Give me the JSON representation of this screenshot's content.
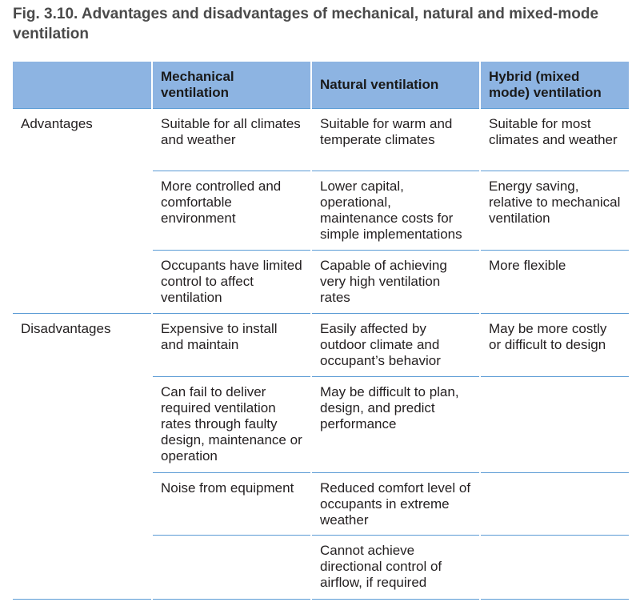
{
  "title": "Fig. 3.10. Advantages and disadvantages of mechanical, natural and mixed-mode ventilation",
  "table": {
    "headers": [
      "",
      "Mechanical ventilation",
      "Natural ventilation",
      "Hybrid (mixed mode) ventilation"
    ],
    "rows": [
      {
        "category": "Advantages",
        "mechanical": "Suitable for all climates and weather",
        "natural": "Suitable for warm and temperate climates",
        "hybrid": "Suitable for most climates and weather"
      },
      {
        "category": "",
        "mechanical": "More controlled and comfortable environment",
        "natural": "Lower capital, operational, maintenance costs for simple implementations",
        "hybrid": "Energy saving, relative to mechanical ventilation"
      },
      {
        "category": "",
        "mechanical": "Occupants have limited control to affect ventilation",
        "natural": "Capable of achieving very high ventilation rates",
        "hybrid": "More flexible"
      },
      {
        "category": "Disadvantages",
        "mechanical": "Expensive to install and maintain",
        "natural": "Easily affected by outdoor climate and occupant’s behavior",
        "hybrid": "May be more costly or difficult to design"
      },
      {
        "category": "",
        "mechanical": "Can fail to deliver required ventilation rates through faulty design, maintenance or operation",
        "natural": "May be difficult to plan, design, and predict performance",
        "hybrid": ""
      },
      {
        "category": "",
        "mechanical": "Noise from equipment",
        "natural": "Reduced comfort level of occupants in extreme weather",
        "hybrid": ""
      },
      {
        "category": "",
        "mechanical": "",
        "natural": "Cannot achieve directional control of airflow, if required",
        "hybrid": ""
      }
    ]
  }
}
